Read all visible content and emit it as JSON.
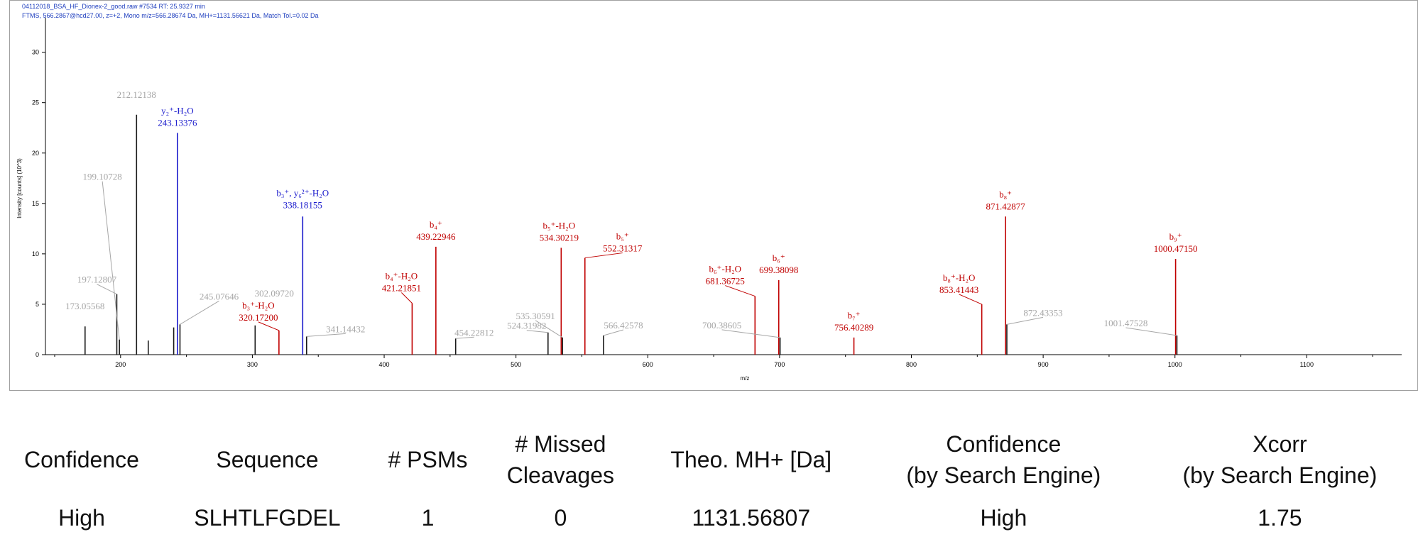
{
  "header": {
    "line1": "04112018_BSA_HF_Dionex-2_good.raw #7534  RT: 25.9327 min",
    "line2": "FTMS, 566.2867@hcd27.00, z=+2, Mono m/z=566.28674 Da, MH+=1131.56621 Da, Match Tol.=0.02 Da"
  },
  "colors": {
    "unmatched": "#a6a6a6",
    "b_ion": "#c00000",
    "y_ion": "#1a1acc",
    "axis": "#000000"
  },
  "chart_data": {
    "type": "bar",
    "xlabel": "m/z",
    "ylabel": "Intensity [counts] (10^3)",
    "xlim": [
      143,
      1172
    ],
    "ylim": [
      0,
      33
    ],
    "xticks": [
      200,
      300,
      400,
      500,
      600,
      700,
      800,
      900,
      1000,
      1100
    ],
    "yticks": [
      0,
      5,
      10,
      15,
      20,
      25,
      30
    ],
    "peaks": [
      {
        "mz": 173.05568,
        "intensity": 2.8,
        "type": "unmatched",
        "labels": [
          "173.05568"
        ]
      },
      {
        "mz": 197.12807,
        "intensity": 6.0,
        "type": "unmatched",
        "labels": [
          "197.12807"
        ]
      },
      {
        "mz": 199.10728,
        "intensity": 1.5,
        "type": "unmatched",
        "labels": [
          "199.10728"
        ]
      },
      {
        "mz": 212.12138,
        "intensity": 23.8,
        "type": "unmatched",
        "labels": [
          "212.12138"
        ]
      },
      {
        "mz": 221.0,
        "intensity": 1.4,
        "type": "unmatched",
        "labels": []
      },
      {
        "mz": 240.3,
        "intensity": 2.7,
        "type": "unmatched",
        "labels": []
      },
      {
        "mz": 243.13376,
        "intensity": 22.0,
        "type": "y",
        "labels": [
          "y₂⁺-H₂O",
          "243.13376"
        ]
      },
      {
        "mz": 245.07646,
        "intensity": 3.0,
        "type": "unmatched",
        "labels": [
          "245.07646"
        ]
      },
      {
        "mz": 302.0972,
        "intensity": 2.9,
        "type": "unmatched",
        "labels": [
          "302.09720"
        ]
      },
      {
        "mz": 320.172,
        "intensity": 2.4,
        "type": "b",
        "labels": [
          "b₃⁺-H₂O",
          "320.17200"
        ]
      },
      {
        "mz": 338.18155,
        "intensity": 13.7,
        "type": "y",
        "labels": [
          "b₃⁺, y₆²⁺-H₂O",
          "338.18155"
        ]
      },
      {
        "mz": 341.14432,
        "intensity": 1.8,
        "type": "unmatched",
        "labels": [
          "341.14432"
        ]
      },
      {
        "mz": 421.21851,
        "intensity": 5.1,
        "type": "b",
        "labels": [
          "b₄⁺-H₂O",
          "421.21851"
        ]
      },
      {
        "mz": 439.22946,
        "intensity": 10.7,
        "type": "b",
        "labels": [
          "b₄⁺",
          "439.22946"
        ]
      },
      {
        "mz": 454.22812,
        "intensity": 1.6,
        "type": "unmatched",
        "labels": [
          "454.22812"
        ]
      },
      {
        "mz": 524.31982,
        "intensity": 2.2,
        "type": "unmatched",
        "labels": [
          "524.31982"
        ]
      },
      {
        "mz": 534.30219,
        "intensity": 10.6,
        "type": "b",
        "labels": [
          "b₅⁺-H₂O",
          "534.30219"
        ]
      },
      {
        "mz": 535.30591,
        "intensity": 1.7,
        "type": "unmatched",
        "labels": [
          "535.30591"
        ]
      },
      {
        "mz": 552.31317,
        "intensity": 9.6,
        "type": "b",
        "labels": [
          "b₅⁺",
          "552.31317"
        ]
      },
      {
        "mz": 566.42578,
        "intensity": 1.9,
        "type": "unmatched",
        "labels": [
          "566.42578"
        ]
      },
      {
        "mz": 681.36725,
        "intensity": 5.8,
        "type": "b",
        "labels": [
          "b₆⁺-H₂O",
          "681.36725"
        ]
      },
      {
        "mz": 699.38098,
        "intensity": 7.4,
        "type": "b",
        "labels": [
          "b₆⁺",
          "699.38098"
        ]
      },
      {
        "mz": 700.38605,
        "intensity": 1.7,
        "type": "unmatched",
        "labels": [
          "700.38605"
        ]
      },
      {
        "mz": 756.40289,
        "intensity": 1.7,
        "type": "b",
        "labels": [
          "b₇⁺",
          "756.40289"
        ]
      },
      {
        "mz": 853.41443,
        "intensity": 5.0,
        "type": "b",
        "labels": [
          "b₈⁺-H₂O",
          "853.41443"
        ]
      },
      {
        "mz": 871.42877,
        "intensity": 13.7,
        "type": "b",
        "labels": [
          "b₈⁺",
          "871.42877"
        ]
      },
      {
        "mz": 872.43353,
        "intensity": 3.0,
        "type": "unmatched",
        "labels": [
          "872.43353"
        ]
      },
      {
        "mz": 1000.4715,
        "intensity": 9.5,
        "type": "b",
        "labels": [
          "b₉⁺",
          "1000.47150"
        ]
      },
      {
        "mz": 1001.47528,
        "intensity": 1.9,
        "type": "unmatched",
        "labels": [
          "1001.47528"
        ]
      }
    ]
  },
  "table": {
    "headers": [
      [
        "Confidence"
      ],
      [
        "Sequence"
      ],
      [
        "# PSMs"
      ],
      [
        "# Missed",
        "Cleavages"
      ],
      [
        "Theo. MH+ [Da]"
      ],
      [
        "Confidence",
        "(by Search Engine)"
      ],
      [
        "Xcorr",
        "(by Search Engine)"
      ]
    ],
    "row": [
      "High",
      "SLHTLFGDEL",
      "1",
      "0",
      "1131.56807",
      "High",
      "1.75"
    ]
  }
}
